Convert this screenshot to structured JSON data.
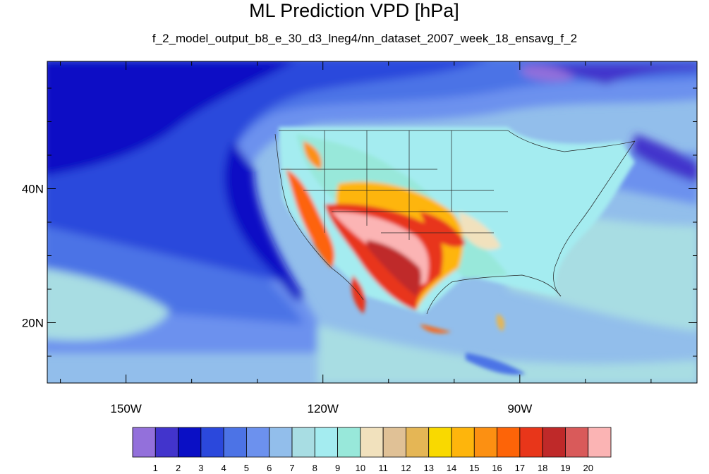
{
  "chart_data": {
    "type": "heatmap",
    "title": "ML Prediction VPD [hPa]",
    "subtitle": "f_2_model_output_b8_e_30_d3_lneg4/nn_dataset_2007_week_18_ensavg_f_2",
    "x_axis": {
      "range": [
        -162,
        -63
      ],
      "major_ticks": [
        {
          "value": -150,
          "label": "150W"
        },
        {
          "value": -120,
          "label": "120W"
        },
        {
          "value": -90,
          "label": "90W"
        }
      ],
      "minor_ticks": [
        -160,
        -140,
        -130,
        -110,
        -100,
        -80,
        -70
      ]
    },
    "y_axis": {
      "range": [
        11,
        59
      ],
      "major_ticks": [
        {
          "value": 40,
          "label": "40N"
        },
        {
          "value": 20,
          "label": "20N"
        }
      ],
      "minor_ticks": [
        15,
        25,
        30,
        35,
        45,
        50,
        55
      ]
    },
    "colorbar": {
      "levels": [
        "1",
        "2",
        "3",
        "4",
        "5",
        "6",
        "7",
        "8",
        "9",
        "10",
        "11",
        "12",
        "13",
        "14",
        "15",
        "16",
        "17",
        "18",
        "19",
        "20"
      ],
      "colors": [
        "#9370DB",
        "#4234CC",
        "#0A0FC5",
        "#2B48DC",
        "#4C73E6",
        "#6C91EE",
        "#92BEEB",
        "#A8DDE3",
        "#A4ECF0",
        "#98E8DA",
        "#F1E1BD",
        "#E0C196",
        "#E5B655",
        "#F9D900",
        "#FEB50C",
        "#FC9012",
        "#FD6408",
        "#E8361A",
        "#BF2929",
        "#D95A5A",
        "#FBB4B4"
      ]
    },
    "legend_placement": "bottom",
    "grid": false
  }
}
